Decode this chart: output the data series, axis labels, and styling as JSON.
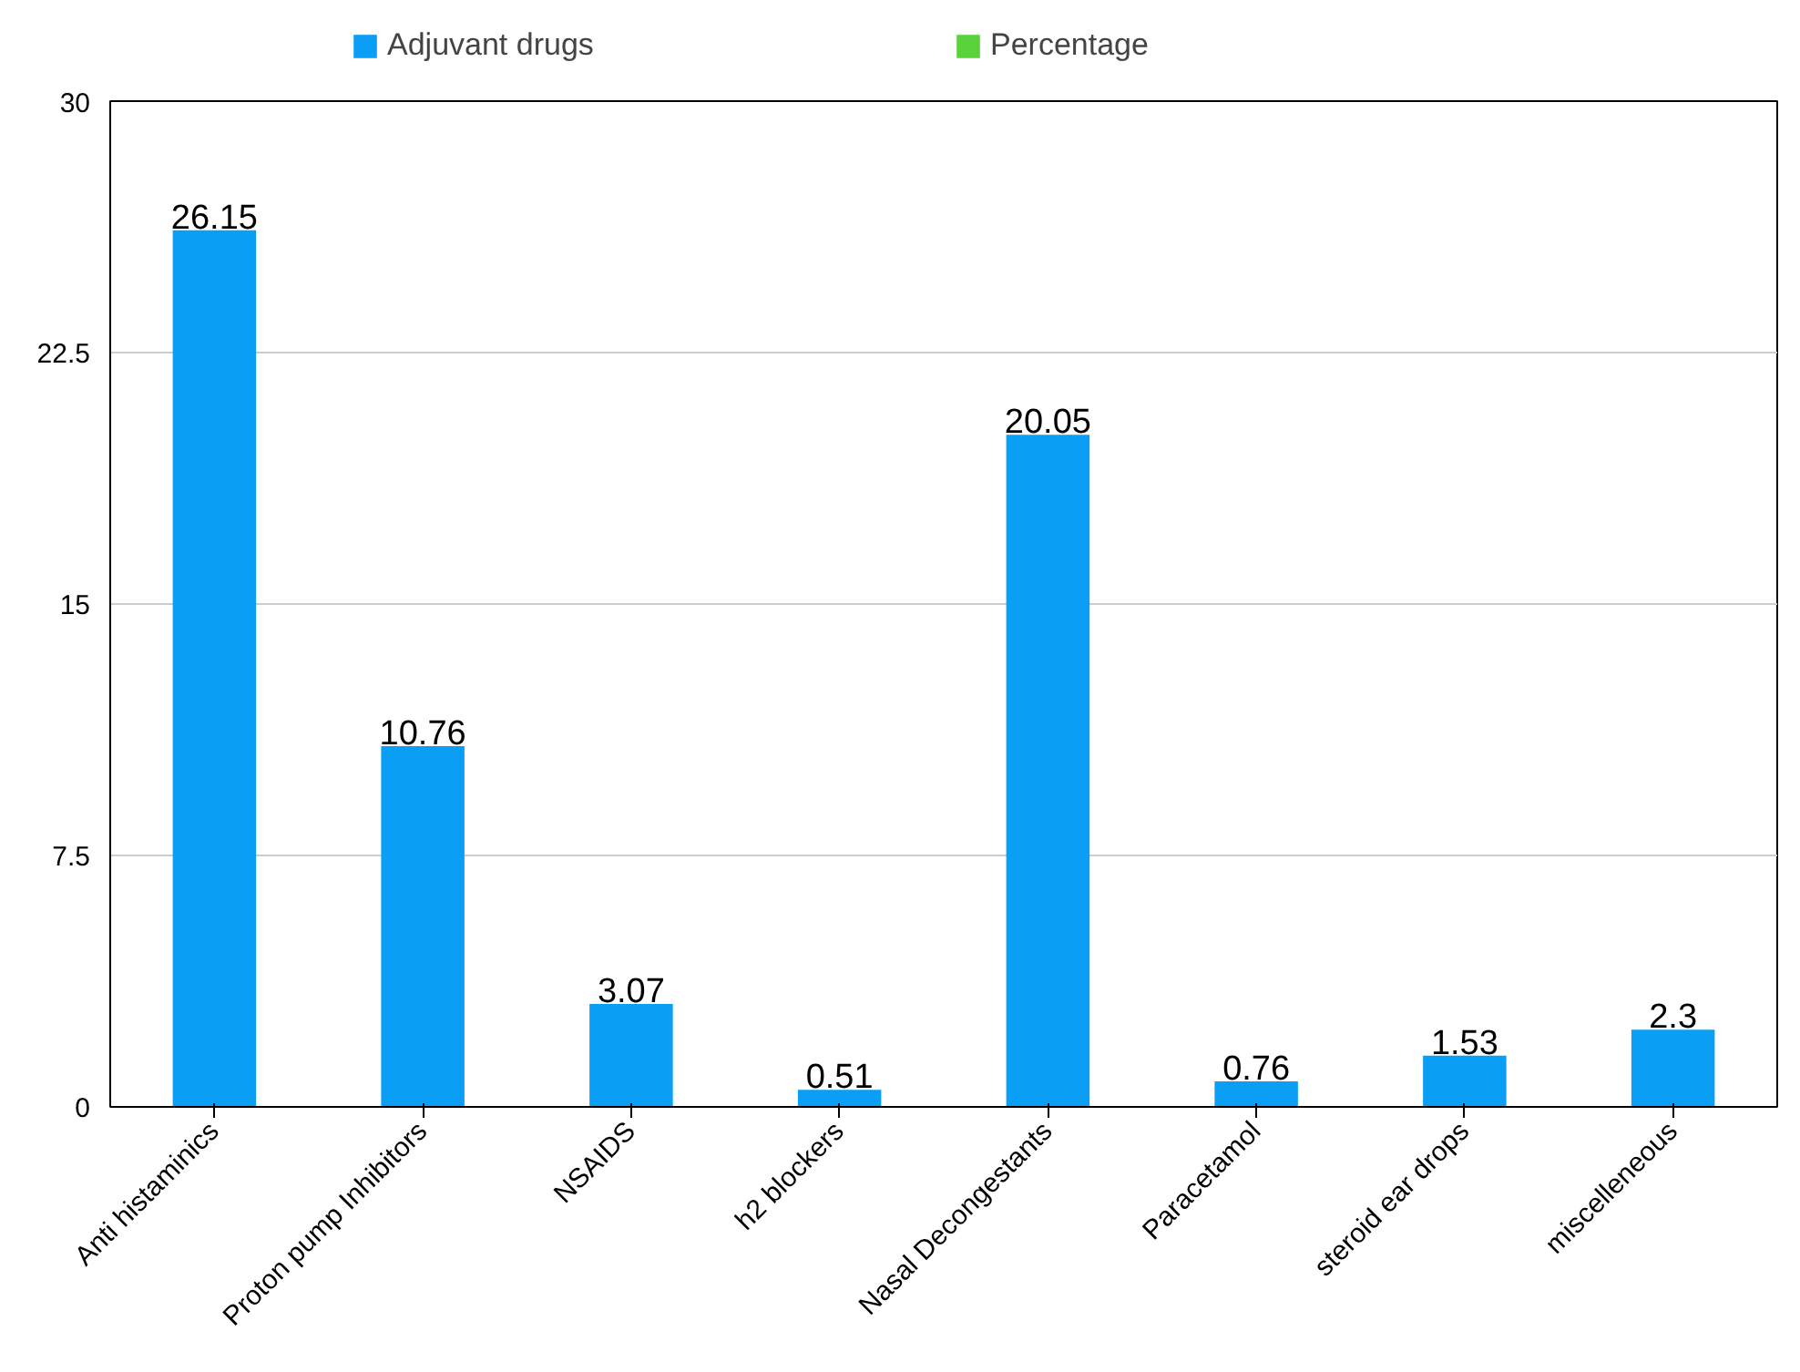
{
  "chart_data": {
    "type": "bar",
    "categories": [
      "Anti histaminics",
      "Proton pump Inhibitors",
      "NSAIDS",
      "h2 blockers",
      "Nasal Decongestants",
      "Paracetamol",
      "steroid ear drops",
      "miscelleneous"
    ],
    "series": [
      {
        "name": "Adjuvant drugs",
        "color": "#0a9ff5",
        "values": [
          26.15,
          10.76,
          3.07,
          0.51,
          20.05,
          0.76,
          1.53,
          2.3
        ]
      },
      {
        "name": "Percentage",
        "color": "#5ad23c",
        "values": [
          null,
          null,
          null,
          null,
          null,
          null,
          null,
          null
        ]
      }
    ],
    "ylim": [
      0,
      30
    ],
    "yticks": [
      0,
      {
        "value": 7.5,
        "label": "7.5"
      },
      15,
      {
        "value": 22.5,
        "label": "22.5"
      },
      30
    ],
    "grid": "y",
    "legend": "top",
    "data_labels": true
  }
}
